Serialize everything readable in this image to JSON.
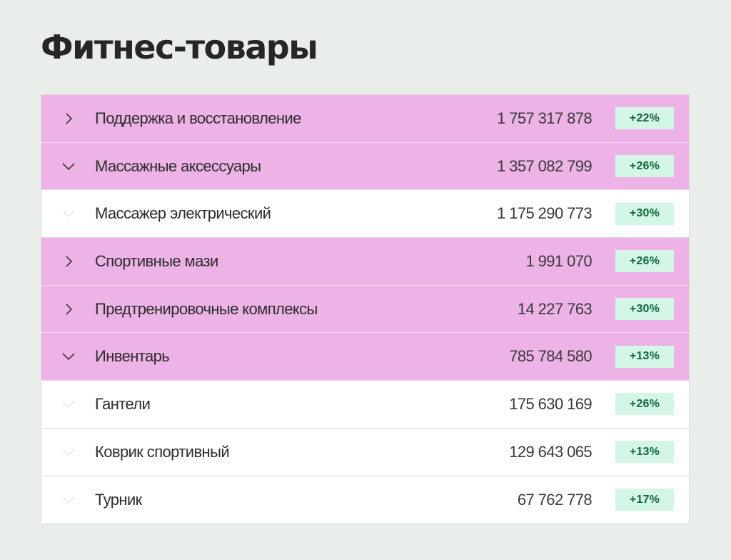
{
  "page": {
    "title": "Фитнес-товары"
  },
  "rows": [
    {
      "label": "Поддержка и восстановление",
      "value": "1 757 317 878",
      "change": "+22%",
      "kind": "category",
      "state": "collapsed",
      "icon": "chevron-right-icon"
    },
    {
      "label": "Массажные аксессуары",
      "value": "1 357 082 799",
      "change": "+26%",
      "kind": "category",
      "state": "expanded",
      "icon": "chevron-down-icon"
    },
    {
      "label": "Массажер электрический",
      "value": "1 175 290 773",
      "change": "+30%",
      "kind": "child",
      "state": "none",
      "icon": "chevron-down-icon"
    },
    {
      "label": "Спортивные мази",
      "value": "1 991 070",
      "change": "+26%",
      "kind": "category",
      "state": "collapsed",
      "icon": "chevron-right-icon"
    },
    {
      "label": "Предтренировочные комплексы",
      "value": "14 227 763",
      "change": "+30%",
      "kind": "category",
      "state": "collapsed",
      "icon": "chevron-right-icon"
    },
    {
      "label": "Инвентарь",
      "value": "785 784 580",
      "change": "+13%",
      "kind": "category",
      "state": "expanded",
      "icon": "chevron-down-icon"
    },
    {
      "label": "Гантели",
      "value": "175 630 169",
      "change": "+26%",
      "kind": "child",
      "state": "none",
      "icon": "chevron-down-icon"
    },
    {
      "label": "Коврик спортивный",
      "value": "129 643 065",
      "change": "+13%",
      "kind": "child",
      "state": "none",
      "icon": "chevron-down-icon"
    },
    {
      "label": "Турник",
      "value": "67 762 778",
      "change": "+17%",
      "kind": "child",
      "state": "none",
      "icon": "chevron-down-icon"
    }
  ],
  "colors": {
    "background": "#e9eeea",
    "category_row": "#edb2e6",
    "child_row": "#ffffff",
    "badge_bg": "#d4f6e6",
    "badge_text": "#12653f",
    "chevron": "#3a3a3a",
    "chevron_muted": "#e6e6e6"
  }
}
